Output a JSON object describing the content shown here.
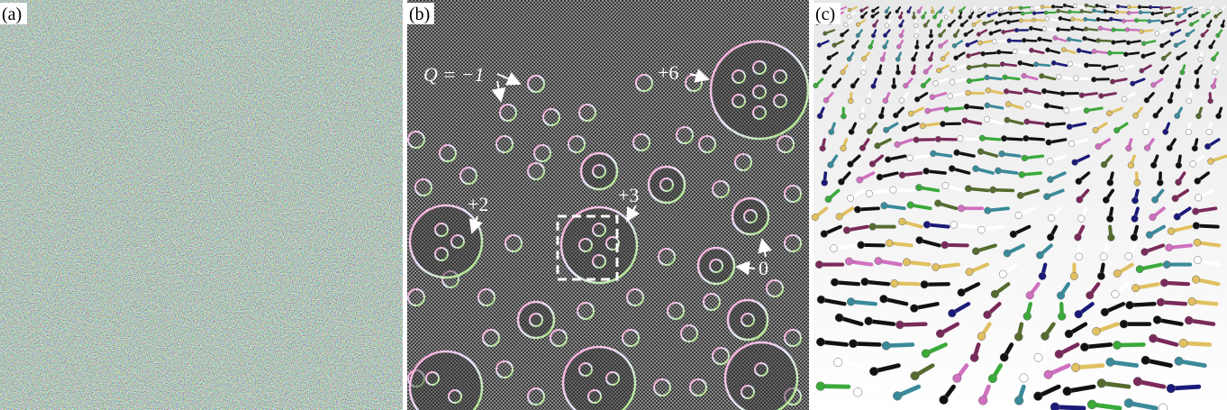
{
  "panels": [
    {
      "label": "(a)"
    },
    {
      "label": "(b)",
      "annotations": [
        "Q = −1",
        "+6",
        "+2",
        "+3",
        "0"
      ]
    },
    {
      "label": "(c)"
    }
  ]
}
